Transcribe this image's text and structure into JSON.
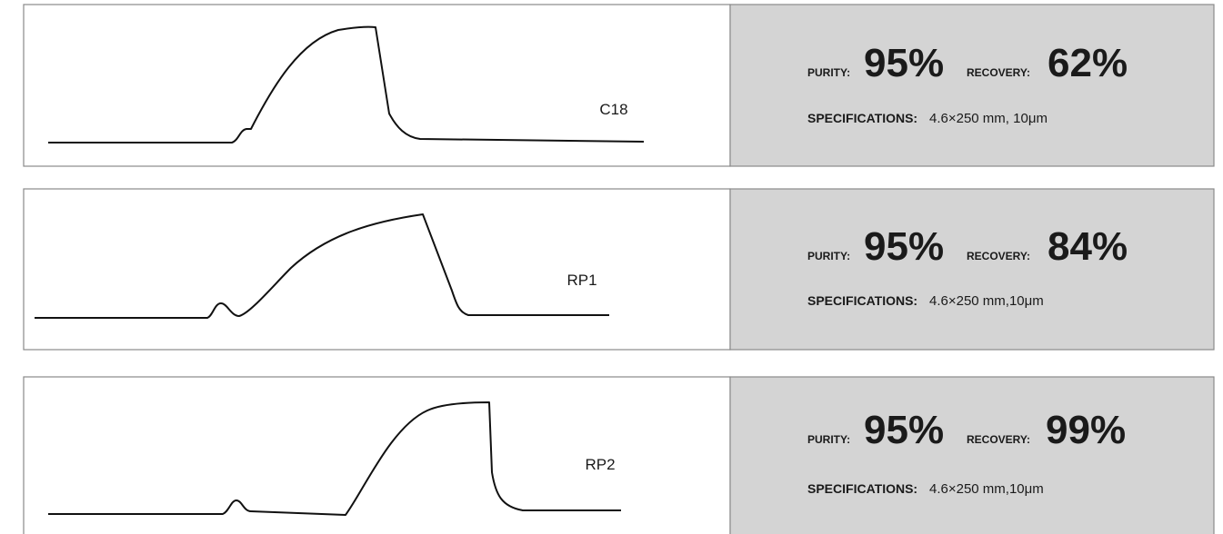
{
  "rows": [
    {
      "label": "C18",
      "purity_label": "PURITY:",
      "purity": "95%",
      "recovery_label": "RECOVERY:",
      "recovery": "62%",
      "spec_label": "SPECIFICATIONS:",
      "spec": "4.6×250 mm, 10μm"
    },
    {
      "label": "RP1",
      "purity_label": "PURITY:",
      "purity": "95%",
      "recovery_label": "RECOVERY:",
      "recovery": "84%",
      "spec_label": "SPECIFICATIONS:",
      "spec": "4.6×250 mm,10μm"
    },
    {
      "label": "RP2",
      "purity_label": "PURITY:",
      "purity": "95%",
      "recovery_label": "RECOVERY:",
      "recovery": "99%",
      "spec_label": "SPECIFICATIONS:",
      "spec": "4.6×250 mm,10μm"
    }
  ]
}
